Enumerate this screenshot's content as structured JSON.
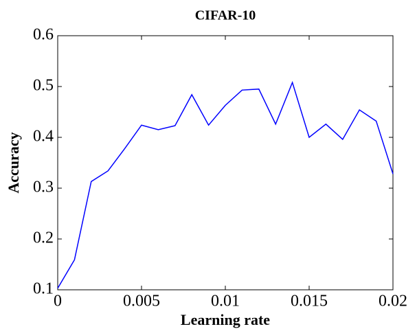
{
  "chart_data": {
    "type": "line",
    "title": "CIFAR-10",
    "xlabel": "Learning rate",
    "ylabel": "Accuracy",
    "x": [
      0,
      0.001,
      0.002,
      0.003,
      0.004,
      0.005,
      0.006,
      0.007,
      0.008,
      0.009,
      0.01,
      0.011,
      0.012,
      0.013,
      0.014,
      0.015,
      0.016,
      0.017,
      0.018,
      0.019,
      0.02
    ],
    "series": [
      {
        "name": "Accuracy",
        "color": "#0000ff",
        "values": [
          0.103,
          0.159,
          0.313,
          0.334,
          0.378,
          0.424,
          0.415,
          0.423,
          0.484,
          0.424,
          0.463,
          0.493,
          0.495,
          0.426,
          0.508,
          0.4,
          0.426,
          0.396,
          0.454,
          0.432,
          0.328
        ]
      }
    ],
    "xlim": [
      0,
      0.02
    ],
    "xticks": [
      0,
      0.005,
      0.01,
      0.015,
      0.02
    ],
    "ylim": [
      0.1,
      0.6
    ],
    "yticks": [
      0.1,
      0.2,
      0.3,
      0.4,
      0.5,
      0.6
    ],
    "grid": false
  }
}
